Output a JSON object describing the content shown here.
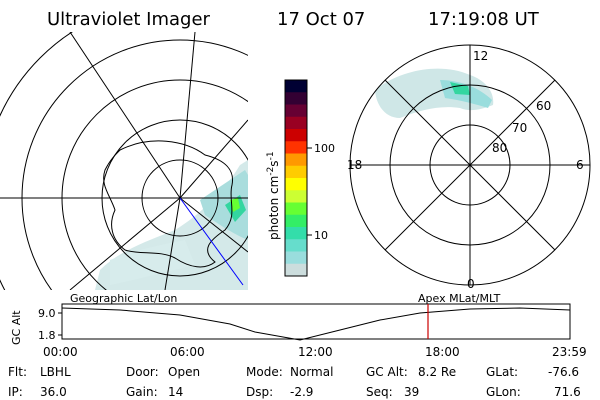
{
  "header": {
    "title": "Ultraviolet Imager",
    "date": "17 Oct 07",
    "time": "17:19:08 UT"
  },
  "colorbar": {
    "label": "photon cm",
    "label_sup1": "-2",
    "label_mid": "s",
    "label_sup2": "-1",
    "ticks": [
      "100",
      "10"
    ],
    "colors": [
      "#000033",
      "#330033",
      "#660033",
      "#990022",
      "#cc0000",
      "#ff3300",
      "#ff9900",
      "#ffcc00",
      "#ffff00",
      "#ccff33",
      "#66ff33",
      "#33ee66",
      "#33ddaa",
      "#66ddcc",
      "#99dddd",
      "#ccdddd"
    ]
  },
  "left_map": {
    "projection": "Geographic Lat/Lon"
  },
  "right_dial": {
    "labels": {
      "top": "12",
      "bottom": "0",
      "left": "18",
      "right": "6",
      "lat60": "60",
      "lat70": "70",
      "lat80": "80"
    },
    "caption": "Apex MLat/MLT"
  },
  "timeline": {
    "axis_title": "GC Alt",
    "y_ticks": [
      "9.0",
      "1.8"
    ],
    "x_ticks": [
      "00:00",
      "06:00",
      "12:00",
      "18:00",
      "23:59"
    ],
    "current_time_marker": "17:19",
    "marker_color": "#cc0000"
  },
  "status": {
    "flt_label": "Flt:",
    "flt_value": "LBHL",
    "ip_label": "IP:",
    "ip_value": "36.0",
    "door_label": "Door:",
    "door_value": "Open",
    "gain_label": "Gain:",
    "gain_value": "14",
    "mode_label": "Mode:",
    "mode_value": "Normal",
    "dsp_label": "Dsp:",
    "dsp_value": "-2.9",
    "gcalt_label": "GC Alt:",
    "gcalt_value": "8.2 Re",
    "seq_label": "Seq:",
    "seq_value": "39",
    "glat_label": "GLat:",
    "glat_value": "-76.6",
    "glon_label": "GLon:",
    "glon_value": "71.6"
  }
}
